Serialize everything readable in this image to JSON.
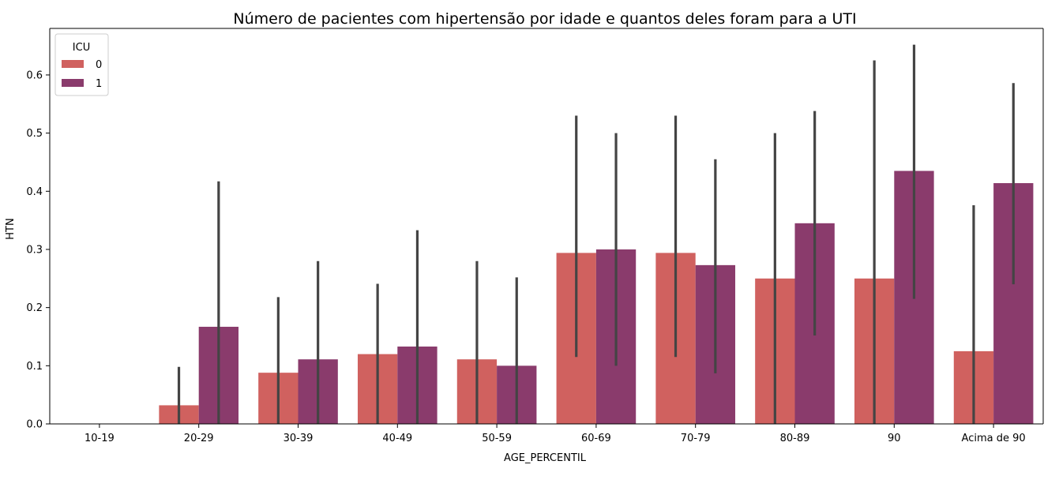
{
  "chart_data": {
    "type": "bar",
    "title": "Número de pacientes com hipertensão por idade e quantos deles foram para a UTI",
    "xlabel": "AGE_PERCENTIL",
    "ylabel": "HTN",
    "ylim": [
      0,
      0.68
    ],
    "yticks": [
      "0.0",
      "0.1",
      "0.2",
      "0.3",
      "0.4",
      "0.5",
      "0.6"
    ],
    "grid": false,
    "legend": {
      "title": "ICU",
      "placement": "top-left"
    },
    "categories": [
      "10-19",
      "20-29",
      "30-39",
      "40-49",
      "50-59",
      "60-69",
      "70-79",
      "80-89",
      "90",
      "Acima de 90"
    ],
    "series": [
      {
        "name": "0",
        "color": "#d0615f",
        "values": [
          0.0,
          0.032,
          0.088,
          0.12,
          0.111,
          0.294,
          0.294,
          0.25,
          0.25,
          0.125
        ],
        "ci_low": [
          0.0,
          0.0,
          0.0,
          0.0,
          0.0,
          0.115,
          0.115,
          0.0,
          0.0,
          0.0
        ],
        "ci_high": [
          0.0,
          0.098,
          0.218,
          0.241,
          0.28,
          0.53,
          0.53,
          0.5,
          0.625,
          0.376
        ]
      },
      {
        "name": "1",
        "color": "#8a3b6c",
        "values": [
          0.0,
          0.167,
          0.111,
          0.133,
          0.1,
          0.3,
          0.273,
          0.345,
          0.435,
          0.414
        ],
        "ci_low": [
          0.0,
          0.0,
          0.0,
          0.0,
          0.0,
          0.1,
          0.087,
          0.152,
          0.215,
          0.24
        ],
        "ci_high": [
          0.0,
          0.417,
          0.28,
          0.333,
          0.252,
          0.5,
          0.455,
          0.538,
          0.652,
          0.586
        ]
      }
    ],
    "error_bar_color": "#444444"
  }
}
